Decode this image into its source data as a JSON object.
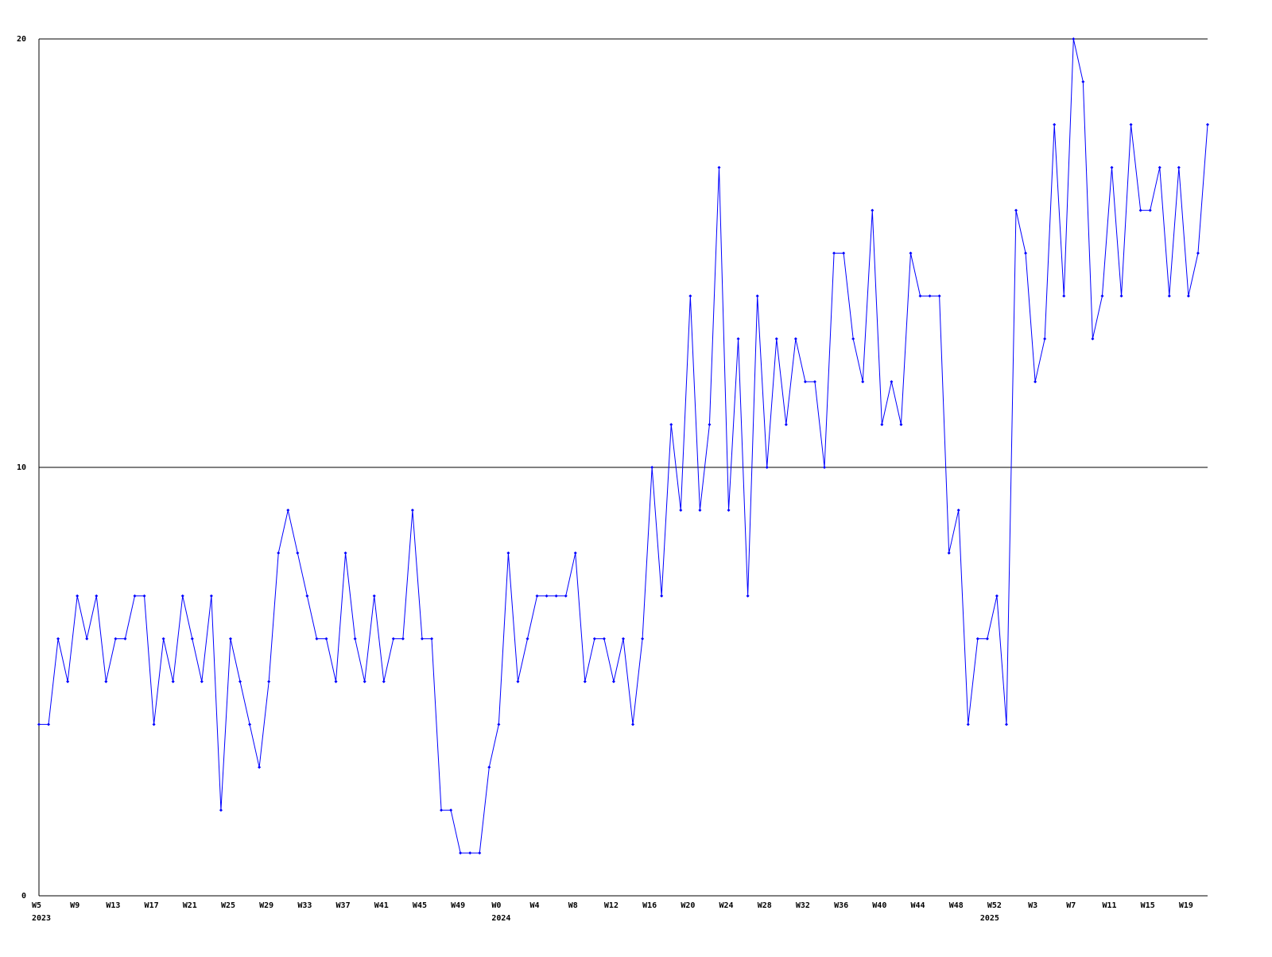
{
  "chart_data": {
    "type": "line",
    "color": "#0000ff",
    "grid": true,
    "ylim": [
      0,
      20
    ],
    "yticks": [
      0,
      10,
      20
    ],
    "categories": [
      "W5",
      null,
      null,
      null,
      "W9",
      null,
      null,
      null,
      "W13",
      null,
      null,
      null,
      "W17",
      null,
      null,
      null,
      "W21",
      null,
      null,
      null,
      "W25",
      null,
      null,
      null,
      "W29",
      null,
      null,
      null,
      "W33",
      null,
      null,
      null,
      "W37",
      null,
      null,
      null,
      "W41",
      null,
      null,
      null,
      "W45",
      null,
      null,
      null,
      "W49",
      null,
      null,
      null,
      "W0",
      null,
      null,
      null,
      "W4",
      null,
      null,
      null,
      "W8",
      null,
      null,
      null,
      "W12",
      null,
      null,
      null,
      "W16",
      null,
      null,
      null,
      "W20",
      null,
      null,
      null,
      "W24",
      null,
      null,
      null,
      "W28",
      null,
      null,
      null,
      "W32",
      null,
      null,
      null,
      "W36",
      null,
      null,
      null,
      "W40",
      null,
      null,
      null,
      "W44",
      null,
      null,
      null,
      "W48",
      null,
      null,
      null,
      "W52",
      null,
      null,
      null,
      "W3",
      null,
      null,
      null,
      "W7",
      null,
      null,
      null,
      "W11",
      null,
      null,
      null,
      "W15",
      null,
      null,
      null,
      "W19",
      null,
      null
    ],
    "year_labels": [
      "2023",
      null,
      null,
      null,
      null,
      null,
      null,
      null,
      null,
      null,
      null,
      null,
      null,
      null,
      null,
      null,
      null,
      null,
      null,
      null,
      null,
      null,
      null,
      null,
      null,
      null,
      null,
      null,
      null,
      null,
      null,
      null,
      null,
      null,
      null,
      null,
      null,
      null,
      null,
      null,
      null,
      null,
      null,
      null,
      null,
      null,
      null,
      null,
      "2024",
      null,
      null,
      null,
      null,
      null,
      null,
      null,
      null,
      null,
      null,
      null,
      null,
      null,
      null,
      null,
      null,
      null,
      null,
      null,
      null,
      null,
      null,
      null,
      null,
      null,
      null,
      null,
      null,
      null,
      null,
      null,
      null,
      null,
      null,
      null,
      null,
      null,
      null,
      null,
      null,
      null,
      null,
      null,
      null,
      null,
      null,
      null,
      null,
      null,
      null,
      "2025",
      null,
      null,
      null,
      null,
      null,
      null,
      null,
      null,
      null,
      null,
      null,
      null,
      null,
      null,
      null,
      null,
      null,
      null,
      null,
      null,
      null
    ],
    "values": [
      4,
      4,
      6,
      5,
      7,
      6,
      7,
      5,
      6,
      6,
      7,
      7,
      4,
      6,
      5,
      7,
      6,
      5,
      7,
      2,
      6,
      5,
      4,
      3,
      5,
      8,
      9,
      8,
      7,
      6,
      6,
      5,
      8,
      6,
      5,
      7,
      5,
      6,
      6,
      9,
      6,
      6,
      2,
      2,
      1,
      1,
      1,
      3,
      4,
      8,
      5,
      6,
      7,
      7,
      7,
      7,
      8,
      5,
      6,
      6,
      5,
      6,
      4,
      6,
      10,
      7,
      11,
      9,
      14,
      9,
      11,
      17,
      9,
      13,
      7,
      14,
      10,
      13,
      11,
      13,
      12,
      12,
      10,
      15,
      15,
      13,
      12,
      16,
      11,
      12,
      11,
      15,
      14,
      14,
      14,
      8,
      9,
      4,
      6,
      6,
      7,
      4,
      16,
      15,
      12,
      13,
      18,
      14,
      20,
      19,
      13,
      14,
      17,
      14,
      18,
      16,
      16,
      17,
      14,
      17,
      14,
      15,
      18
    ]
  }
}
